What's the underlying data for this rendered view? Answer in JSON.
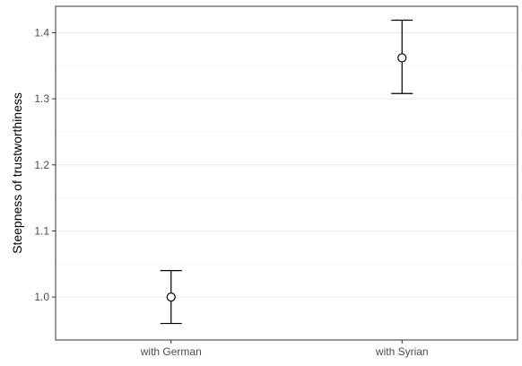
{
  "chart_data": {
    "type": "scatter",
    "subtype": "point-with-error-bars",
    "title": "",
    "xlabel": "",
    "ylabel": "Steepness of trustworthiness",
    "categories": [
      "with German",
      "with Syrian"
    ],
    "points": [
      {
        "category": "with German",
        "y": 1.0,
        "lower": 0.96,
        "upper": 1.04
      },
      {
        "category": "with Syrian",
        "y": 1.362,
        "lower": 1.308,
        "upper": 1.419
      }
    ],
    "ylim": [
      0.935,
      1.44
    ],
    "y_ticks": [
      1.0,
      1.1,
      1.2,
      1.3,
      1.4
    ],
    "y_tick_labels": [
      "1.0",
      "1.1",
      "1.2",
      "1.3",
      "1.4"
    ],
    "grid": true,
    "legend": "none",
    "marker": "open-circle",
    "colors": {
      "marks": "#000000",
      "grid": "#ebebeb",
      "tick_text": "#4d4d4d",
      "axis_title": "#000000",
      "panel_border": "#333333"
    }
  }
}
